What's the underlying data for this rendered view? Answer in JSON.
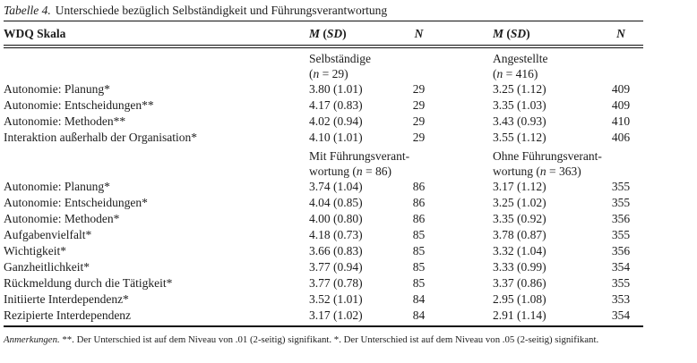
{
  "title": {
    "label": "Tabelle 4.",
    "text": "Unterschiede bezüglich Selbständigkeit und Führungsverantwortung"
  },
  "table": {
    "header": {
      "scale": "WDQ Skala",
      "msd": {
        "m": "M",
        "open": " (",
        "sd": "SD",
        "close": ")"
      },
      "n": "N"
    },
    "sections": [
      {
        "group_left": {
          "line1": "Selbständige",
          "line2_pre": "(",
          "line2_var": "n",
          "line2_post": " = 29)"
        },
        "group_right": {
          "line1": "Angestellte",
          "line2_pre": "(",
          "line2_var": "n",
          "line2_post": " = 416)"
        },
        "rows": [
          {
            "scale": "Autonomie: Planung*",
            "m1": "3.80 (1.01)",
            "n1": "29",
            "m2": "3.25 (1.12)",
            "n2": "409"
          },
          {
            "scale": "Autonomie: Entscheidungen**",
            "m1": "4.17 (0.83)",
            "n1": "29",
            "m2": "3.35 (1.03)",
            "n2": "409"
          },
          {
            "scale": "Autonomie: Methoden**",
            "m1": "4.02 (0.94)",
            "n1": "29",
            "m2": "3.43 (0.93)",
            "n2": "410"
          },
          {
            "scale": "Interaktion außerhalb der Organisation*",
            "m1": "4.10 (1.01)",
            "n1": "29",
            "m2": "3.55 (1.12)",
            "n2": "406"
          }
        ]
      },
      {
        "group_left": {
          "line1": "Mit Führungsverant-",
          "line2_pre": "wortung (",
          "line2_var": "n",
          "line2_post": " = 86)"
        },
        "group_right": {
          "line1": "Ohne Führungsverant-",
          "line2_pre": "wortung (",
          "line2_var": "n",
          "line2_post": " = 363)"
        },
        "rows": [
          {
            "scale": "Autonomie: Planung*",
            "m1": "3.74 (1.04)",
            "n1": "86",
            "m2": "3.17 (1.12)",
            "n2": "355"
          },
          {
            "scale": "Autonomie: Entscheidungen*",
            "m1": "4.04 (0.85)",
            "n1": "86",
            "m2": "3.25 (1.02)",
            "n2": "355"
          },
          {
            "scale": "Autonomie: Methoden*",
            "m1": "4.00 (0.80)",
            "n1": "86",
            "m2": "3.35 (0.92)",
            "n2": "356"
          },
          {
            "scale": "Aufgabenvielfalt*",
            "m1": "4.18 (0.73)",
            "n1": "85",
            "m2": "3.78 (0.87)",
            "n2": "355"
          },
          {
            "scale": "Wichtigkeit*",
            "m1": "3.66 (0.83)",
            "n1": "85",
            "m2": "3.32 (1.04)",
            "n2": "356"
          },
          {
            "scale": "Ganzheitlichkeit*",
            "m1": "3.77 (0.94)",
            "n1": "85",
            "m2": "3.33 (0.99)",
            "n2": "354"
          },
          {
            "scale": "Rückmeldung durch die Tätigkeit*",
            "m1": "3.77 (0.78)",
            "n1": "85",
            "m2": "3.37 (0.86)",
            "n2": "355"
          },
          {
            "scale": "Initiierte Interdependenz*",
            "m1": "3.52 (1.01)",
            "n1": "84",
            "m2": "2.95 (1.08)",
            "n2": "353"
          },
          {
            "scale": "Rezipierte Interdependenz",
            "m1": "3.17 (1.02)",
            "n1": "84",
            "m2": "2.91 (1.14)",
            "n2": "354"
          }
        ]
      }
    ]
  },
  "footnote": {
    "label": "Anmerkungen.",
    "text": " **. Der Unterschied ist auf dem Niveau von .01 (2-seitig) signifikant. *. Der Unterschied ist auf dem Niveau von .05 (2-seitig) signifikant."
  }
}
